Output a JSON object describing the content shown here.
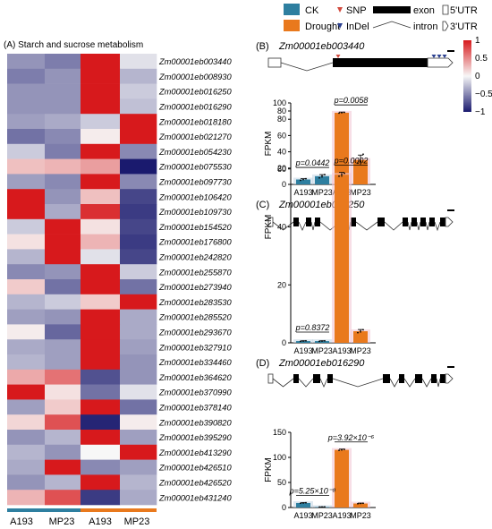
{
  "legend": {
    "ck": "CK",
    "drought": "Drought",
    "snp": "SNP",
    "indel": "InDel",
    "exon": "exon",
    "intron": "intron",
    "utr5": "5'UTR",
    "utr3": "3'UTR",
    "colors": {
      "ck": "#2e7fa0",
      "drought": "#e9791d",
      "snp": "#d24a3e",
      "indel": "#2a3f8f"
    }
  },
  "colorbar": {
    "ticks": [
      "1",
      "0.5",
      "0",
      "−0.5",
      "−1"
    ]
  },
  "panelA": {
    "title": "(A)  Starch and sucrose metabolism",
    "columns": [
      "A193",
      "MP23",
      "A193",
      "MP23"
    ],
    "group_colors": [
      "#2e7fa0",
      "#e9791d"
    ]
  },
  "chart_data": [
    {
      "type": "heatmap",
      "title": "Starch and sucrose metabolism",
      "columns": [
        "A193",
        "MP23",
        "A193",
        "MP23"
      ],
      "rows": [
        "Zm00001eb003440",
        "Zm00001eb008930",
        "Zm00001eb016250",
        "Zm00001eb016290",
        "Zm00001eb018180",
        "Zm00001eb021270",
        "Zm00001eb054230",
        "Zm00001eb075530",
        "Zm00001eb097730",
        "Zm00001eb106420",
        "Zm00001eb109730",
        "Zm00001eb154520",
        "Zm00001eb176800",
        "Zm00001eb242820",
        "Zm00001eb255870",
        "Zm00001eb273940",
        "Zm00001eb283530",
        "Zm00001eb285520",
        "Zm00001eb293670",
        "Zm00001eb327910",
        "Zm00001eb334460",
        "Zm00001eb364620",
        "Zm00001eb370990",
        "Zm00001eb378140",
        "Zm00001eb390820",
        "Zm00001eb395290",
        "Zm00001eb413290",
        "Zm00001eb426510",
        "Zm00001eb426520",
        "Zm00001eb431240"
      ],
      "values": [
        [
          -0.45,
          -0.55,
          1.0,
          -0.1
        ],
        [
          -0.55,
          -0.45,
          1.0,
          -0.3
        ],
        [
          -0.45,
          -0.45,
          1.0,
          -0.2
        ],
        [
          -0.45,
          -0.45,
          1.0,
          -0.25
        ],
        [
          -0.4,
          -0.35,
          -0.2,
          1.0
        ],
        [
          -0.6,
          -0.5,
          0.05,
          1.0
        ],
        [
          -0.2,
          -0.55,
          1.0,
          -0.5
        ],
        [
          0.25,
          0.3,
          0.4,
          -1.0
        ],
        [
          -0.4,
          -0.5,
          1.0,
          -0.5
        ],
        [
          1.0,
          -0.45,
          0.25,
          -0.8
        ],
        [
          1.0,
          -0.35,
          0.9,
          -0.85
        ],
        [
          -0.2,
          1.0,
          0.1,
          -0.8
        ],
        [
          0.1,
          1.0,
          0.3,
          -0.85
        ],
        [
          -0.3,
          1.0,
          -0.1,
          -0.8
        ],
        [
          -0.5,
          -0.45,
          1.0,
          -0.2
        ],
        [
          0.2,
          -0.6,
          1.0,
          -0.6
        ],
        [
          -0.3,
          -0.2,
          0.2,
          1.0
        ],
        [
          -0.4,
          -0.45,
          1.0,
          -0.35
        ],
        [
          0.05,
          -0.65,
          1.0,
          -0.35
        ],
        [
          -0.35,
          -0.4,
          1.0,
          -0.4
        ],
        [
          -0.3,
          -0.4,
          1.0,
          -0.45
        ],
        [
          0.35,
          0.6,
          -0.75,
          -0.45
        ],
        [
          1.0,
          0.1,
          -0.6,
          -0.1
        ],
        [
          -0.4,
          0.2,
          1.0,
          -0.6
        ],
        [
          0.15,
          0.75,
          -0.95,
          0.05
        ],
        [
          -0.45,
          -0.3,
          1.0,
          -0.4
        ],
        [
          -0.3,
          -0.45,
          0.0,
          1.0
        ],
        [
          -0.35,
          1.0,
          -0.5,
          -0.4
        ],
        [
          -0.45,
          -0.3,
          1.0,
          -0.3
        ],
        [
          0.3,
          0.75,
          -0.85,
          -0.35
        ]
      ],
      "color_range": [
        -1,
        1
      ]
    },
    {
      "type": "bar",
      "panel": "(B)",
      "title": "Zm00001eb003440",
      "ylabel": "FPKM",
      "ylim": [
        0,
        100
      ],
      "yticks": [
        0,
        20,
        40,
        60,
        80,
        100
      ],
      "categories": [
        "A193",
        "MP23",
        "A193",
        "MP23"
      ],
      "groups": [
        "CK",
        "CK",
        "Drought",
        "Drought"
      ],
      "values": [
        6,
        10,
        88,
        30
      ],
      "errors": [
        1,
        2,
        0.8,
        6
      ],
      "points": [
        [
          5,
          6,
          7
        ],
        [
          8,
          10,
          12
        ],
        [
          87.5,
          88,
          88.5
        ],
        [
          26,
          28,
          37
        ]
      ],
      "pvalues": [
        {
          "text": "p=0.0442",
          "between": [
            0,
            1
          ]
        },
        {
          "text": "p=0.0058",
          "between": [
            2,
            3
          ]
        }
      ],
      "gene": {
        "exons": [
          [
            0,
            14
          ],
          [
            72,
            178
          ]
        ],
        "intron_span": [
          14,
          72
        ],
        "utr5": [
          0,
          14
        ],
        "utr3": [
          178,
          206
        ],
        "snp": [
          78
        ],
        "indel": [
          185,
          191,
          197
        ]
      }
    },
    {
      "type": "bar",
      "panel": "(C)",
      "title": "Zm00001eb016250",
      "ylabel": "FPKM",
      "ylim": [
        0,
        80
      ],
      "yticks": [
        0,
        20,
        40,
        60,
        80
      ],
      "categories": [
        "A193",
        "MP23",
        "A193",
        "MP23"
      ],
      "groups": [
        "CK",
        "CK",
        "Drought",
        "Drought"
      ],
      "values": [
        0.6,
        0.6,
        58,
        4
      ],
      "errors": [
        0.1,
        0.1,
        0.8,
        0.6
      ],
      "points": [
        [
          0.5,
          0.6,
          0.7
        ],
        [
          0.5,
          0.6,
          0.7
        ],
        [
          57.5,
          58,
          58.5
        ],
        [
          3.5,
          4,
          4.5
        ]
      ],
      "pvalues": [
        {
          "text": "p=0.8372",
          "between": [
            0,
            1
          ]
        },
        {
          "text": "p=0.0002",
          "between": [
            2,
            3
          ]
        }
      ],
      "gene": {
        "exons": [
          [
            28,
            34
          ],
          [
            42,
            48
          ],
          [
            52,
            58
          ],
          [
            80,
            88
          ],
          [
            92,
            98
          ],
          [
            122,
            130
          ],
          [
            150,
            156
          ],
          [
            160,
            166
          ],
          [
            170,
            176
          ],
          [
            180,
            186
          ],
          [
            192,
            198
          ]
        ],
        "intron_span": [
          5,
          198
        ],
        "utr5": [
          0,
          5
        ],
        "utr3": [
          198,
          206
        ],
        "snp": [],
        "indel": []
      }
    },
    {
      "type": "bar",
      "panel": "(D)",
      "title": "Zm00001eb016290",
      "ylabel": "FPKM",
      "ylim": [
        0,
        150
      ],
      "yticks": [
        0,
        50,
        100,
        150
      ],
      "categories": [
        "A193",
        "MP23",
        "A193",
        "MP23"
      ],
      "groups": [
        "CK",
        "CK",
        "Drought",
        "Drought"
      ],
      "values": [
        9,
        1,
        115,
        8
      ],
      "errors": [
        0.6,
        0.3,
        1.5,
        0.8
      ],
      "points": [
        [
          8.5,
          9,
          9.5
        ],
        [
          0.8,
          1,
          1.2
        ],
        [
          114,
          115,
          116
        ],
        [
          7.5,
          8,
          8.5
        ]
      ],
      "pvalues": [
        {
          "text": "p=5.25×10⁻⁸",
          "between": [
            0,
            1
          ]
        },
        {
          "text": "p=3.92×10⁻⁶",
          "between": [
            2,
            3
          ]
        }
      ],
      "gene": {
        "exons": [
          [
            28,
            34
          ],
          [
            50,
            58
          ],
          [
            66,
            72
          ],
          [
            128,
            136
          ],
          [
            146,
            152
          ],
          [
            164,
            172
          ],
          [
            182,
            188
          ],
          [
            192,
            198
          ]
        ],
        "intron_span": [
          5,
          198
        ],
        "utr5": [
          0,
          5
        ],
        "utr3": [
          198,
          206
        ],
        "snp": [],
        "indel": []
      }
    }
  ]
}
